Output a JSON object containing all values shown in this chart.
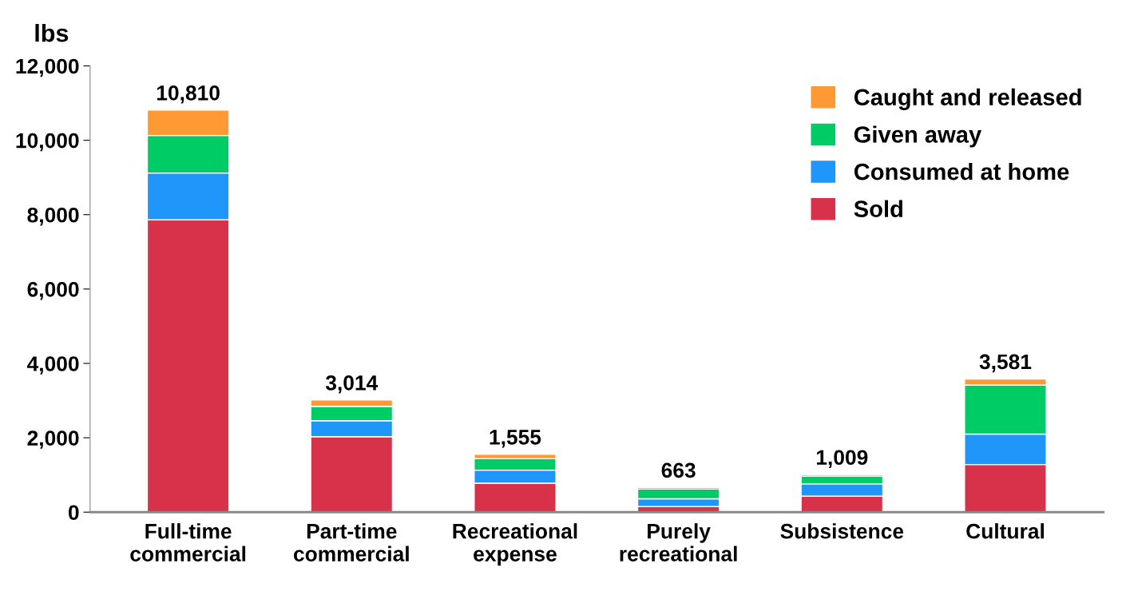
{
  "chart_data": {
    "type": "bar",
    "stacked": true,
    "ylabel": "lbs",
    "categories": [
      "Full-time\ncommercial",
      "Part-time\ncommercial",
      "Recreational\nexpense",
      "Purely\nrecreational",
      "Subsistence",
      "Cultural"
    ],
    "series": [
      {
        "name": "Sold",
        "color": "#d8324a",
        "values": [
          7860,
          2030,
          780,
          150,
          430,
          1280
        ]
      },
      {
        "name": "Consumed at home",
        "color": "#1e96fa",
        "values": [
          1260,
          430,
          350,
          210,
          330,
          820
        ]
      },
      {
        "name": "Given away",
        "color": "#00cc66",
        "values": [
          1010,
          385,
          310,
          260,
          210,
          1320
        ]
      },
      {
        "name": "Caught and released",
        "color": "#ff9933",
        "values": [
          680,
          169,
          115,
          43,
          39,
          161
        ]
      }
    ],
    "totals": [
      "10,810",
      "3,014",
      "1,555",
      "663",
      "1,009",
      "3,581"
    ],
    "ylim": [
      0,
      12000
    ],
    "yticks": [
      {
        "value": 0,
        "label": "0"
      },
      {
        "value": 2000,
        "label": "2,000"
      },
      {
        "value": 4000,
        "label": "4,000"
      },
      {
        "value": 6000,
        "label": "6,000"
      },
      {
        "value": 8000,
        "label": "8,000"
      },
      {
        "value": 10000,
        "label": "10,000"
      },
      {
        "value": 12000,
        "label": "12,000"
      }
    ],
    "grid": false,
    "legend": "top right"
  }
}
